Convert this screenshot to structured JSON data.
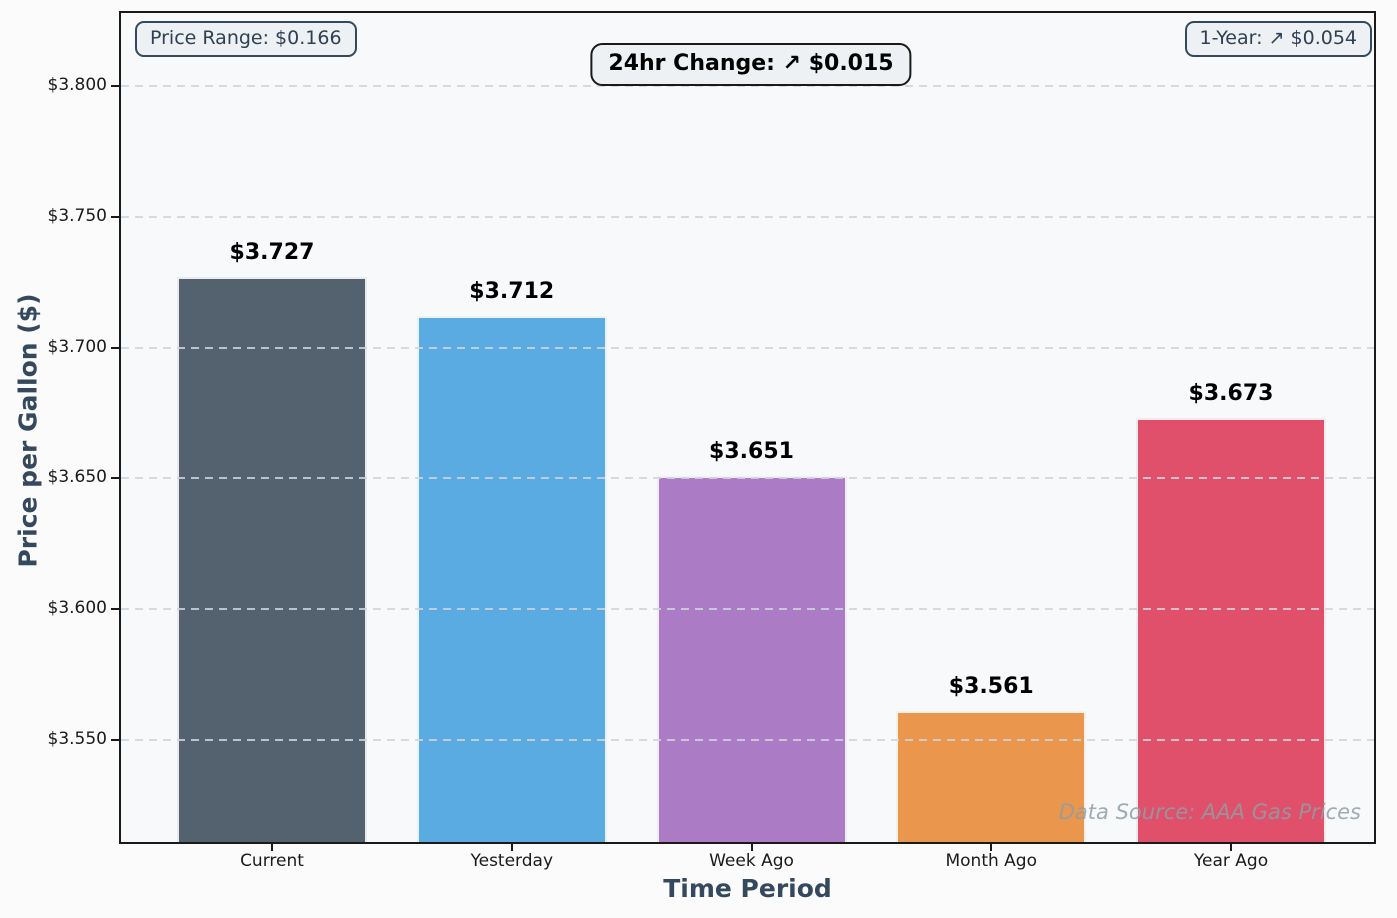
{
  "figure": {
    "watermark": "Data Source: AAA Gas Prices"
  },
  "annotations": {
    "price_range": {
      "label": "Price Range: $0.166"
    },
    "change_24hr": {
      "label": "24hr Change: ↗ $0.015"
    },
    "one_year": {
      "label": "1-Year: ↗ $0.054"
    }
  },
  "chart_data": {
    "type": "bar",
    "title": "",
    "xlabel": "Time Period",
    "ylabel": "Price per Gallon ($)",
    "categories": [
      "Current",
      "Yesterday",
      "Week Ago",
      "Month Ago",
      "Year Ago"
    ],
    "values": [
      3.727,
      3.712,
      3.651,
      3.561,
      3.673
    ],
    "bar_labels": [
      "$3.727",
      "$3.712",
      "$3.651",
      "$3.561",
      "$3.673"
    ],
    "bar_colors": [
      "#54616f",
      "#5aabe2",
      "#ab7cc5",
      "#ea964d",
      "#e0506a"
    ],
    "ylim": [
      3.511,
      3.828
    ],
    "yticks": [
      3.55,
      3.6,
      3.65,
      3.7,
      3.75,
      3.8
    ],
    "ytick_labels": [
      "$3.550",
      "$3.600",
      "$3.650",
      "$3.700",
      "$3.750",
      "$3.800"
    ],
    "grid": {
      "axis": "y",
      "style": "dashed",
      "on_top": true
    },
    "legend": "none"
  },
  "colors": {
    "plot_bg": "#f8f9fa",
    "figure_bg": "#fbfbfb",
    "axis_label": "#34495e",
    "tick_label": "#1a1a1a",
    "annotation_bg": "#edf1f3",
    "annotation_border": "#34495e",
    "grid_color": "#ced5db",
    "watermark_color": "#8d9fa7"
  }
}
